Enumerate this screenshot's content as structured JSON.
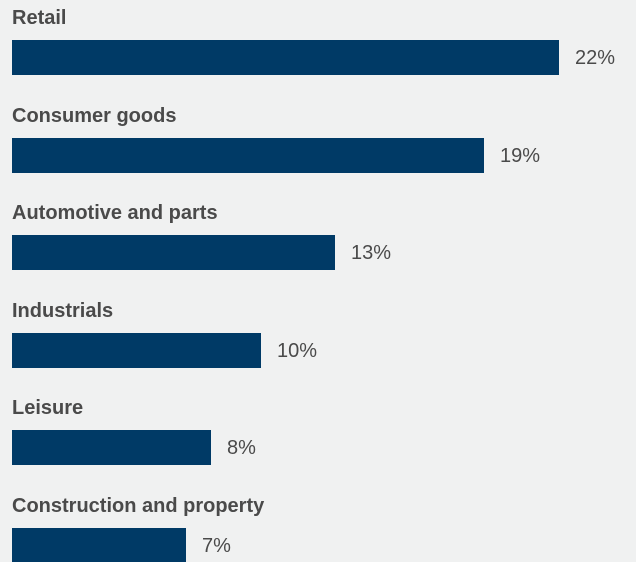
{
  "chart_data": {
    "type": "bar",
    "orientation": "horizontal",
    "categories": [
      "Retail",
      "Consumer goods",
      "Automotive and parts",
      "Industrials",
      "Leisure",
      "Construction and property"
    ],
    "values": [
      22,
      19,
      13,
      10,
      8,
      7
    ],
    "value_labels": [
      "22%",
      "19%",
      "13%",
      "10%",
      "8%",
      "7%"
    ],
    "unit": "%",
    "xlim": [
      0,
      22
    ],
    "grid": false,
    "legend": "none",
    "bar_color": "#003a66"
  }
}
